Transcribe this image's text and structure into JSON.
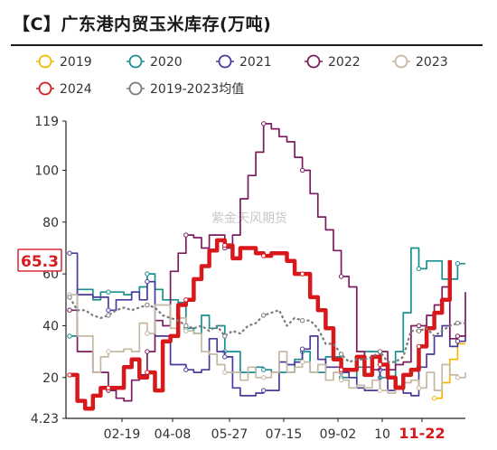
{
  "chart_data": {
    "type": "line",
    "title": "【C】广东港内贸玉米库存(万吨)",
    "xlabel": "",
    "ylabel": "",
    "ylim": [
      4.23,
      119
    ],
    "yticks": [
      4.23,
      20,
      40,
      60,
      80,
      100,
      119
    ],
    "ytick_labels": [
      "4.23",
      "20",
      "40",
      "60",
      "80",
      "100",
      "119"
    ],
    "xticks": [
      "02-19",
      "04-08",
      "05-27",
      "07-15",
      "09-02",
      "10",
      "11-22"
    ],
    "grid": false,
    "legend_placement": "top",
    "watermark": "紫金天风期货",
    "annotations": [
      {
        "text": "65.3",
        "series": "2024",
        "kind": "last-value-box",
        "color": "#d7191c"
      },
      {
        "text": "11-22",
        "kind": "current-date-label",
        "color": "#d7191c"
      }
    ],
    "week_count": 52,
    "series": [
      {
        "name": "2019",
        "color": "#f5b800",
        "dashed": false,
        "values": [
          null,
          null,
          null,
          null,
          null,
          null,
          null,
          null,
          null,
          null,
          null,
          null,
          null,
          null,
          null,
          null,
          null,
          null,
          null,
          null,
          null,
          null,
          null,
          null,
          null,
          null,
          null,
          null,
          null,
          null,
          null,
          null,
          null,
          null,
          null,
          null,
          null,
          null,
          null,
          null,
          null,
          null,
          null,
          null,
          null,
          null,
          null,
          12,
          18,
          27,
          33,
          33
        ]
      },
      {
        "name": "2020",
        "color": "#1a8f8f",
        "dashed": false,
        "values": [
          36,
          54,
          54,
          50,
          53,
          53,
          53,
          52,
          53,
          55,
          60,
          54,
          50,
          50,
          49,
          39,
          37,
          44,
          39,
          40,
          30,
          30,
          22,
          22,
          24,
          23,
          22,
          22,
          22,
          27,
          30,
          22,
          22,
          28,
          28,
          20,
          20,
          24,
          30,
          30,
          20,
          20,
          30,
          45,
          70,
          62,
          65,
          65,
          58,
          58,
          64,
          64
        ]
      },
      {
        "name": "2021",
        "color": "#4b3a9c",
        "dashed": false,
        "values": [
          68,
          52,
          52,
          51,
          51,
          46,
          50,
          50,
          53,
          50,
          57,
          36,
          36,
          25,
          25,
          23,
          22,
          23,
          35,
          30,
          28,
          16,
          13,
          13,
          14,
          15,
          15,
          26,
          25,
          26,
          31,
          36,
          27,
          24,
          24,
          22,
          20,
          16,
          15,
          15,
          23,
          15,
          17,
          14,
          13,
          24,
          29,
          36,
          40,
          32,
          34,
          36
        ]
      },
      {
        "name": "2022",
        "color": "#7b1c5e",
        "dashed": false,
        "values": [
          46,
          30,
          30,
          22,
          22,
          15,
          12,
          11,
          19,
          21,
          30,
          42,
          40,
          61,
          68,
          75,
          74,
          70,
          75,
          75,
          70,
          75,
          89,
          98,
          107,
          118,
          116,
          113,
          111,
          105,
          100,
          91,
          82,
          77,
          69,
          59,
          55,
          30,
          24,
          23,
          30,
          23,
          25,
          26,
          40,
          40,
          44,
          48,
          55,
          35,
          36,
          53
        ]
      },
      {
        "name": "2023",
        "color": "#c5b8a2",
        "dashed": false,
        "values": [
          52,
          36,
          36,
          22,
          28,
          30,
          30,
          31,
          30,
          41,
          37,
          48,
          48,
          39,
          43,
          38,
          37,
          30,
          29,
          25,
          22,
          22,
          19,
          24,
          20,
          20,
          22,
          30,
          22,
          24,
          26,
          22,
          25,
          19,
          22,
          19,
          16,
          17,
          16,
          19,
          15,
          14,
          17,
          18,
          19,
          16,
          22,
          15,
          25,
          21,
          20,
          22
        ]
      },
      {
        "name": "2024",
        "color": "#d7191c",
        "dashed": false,
        "values": [
          21,
          11,
          8,
          13,
          16,
          16,
          16,
          24,
          27,
          20,
          22,
          15,
          34,
          36,
          48,
          50,
          58,
          63,
          69,
          73,
          71,
          66,
          70,
          70,
          68,
          67,
          68,
          68,
          65,
          60,
          60,
          51,
          46,
          39,
          27,
          23,
          23,
          28,
          21,
          28,
          25,
          20,
          16,
          21,
          23,
          32,
          39,
          45,
          50,
          65.3,
          null,
          null
        ]
      },
      {
        "name": "2019-2023均值",
        "color": "#7a7a7a",
        "dashed": true,
        "values": [
          51,
          46,
          46,
          44,
          43,
          44,
          46,
          47,
          46,
          47,
          48,
          47,
          44,
          43,
          42,
          40,
          39,
          40,
          38,
          40,
          36,
          38,
          37,
          40,
          41,
          44,
          45,
          46,
          40,
          43,
          42,
          42,
          39,
          33,
          33,
          29,
          26,
          27,
          27,
          28,
          30,
          26,
          26,
          28,
          38,
          38,
          39,
          36,
          38,
          40,
          41,
          41
        ]
      }
    ]
  }
}
